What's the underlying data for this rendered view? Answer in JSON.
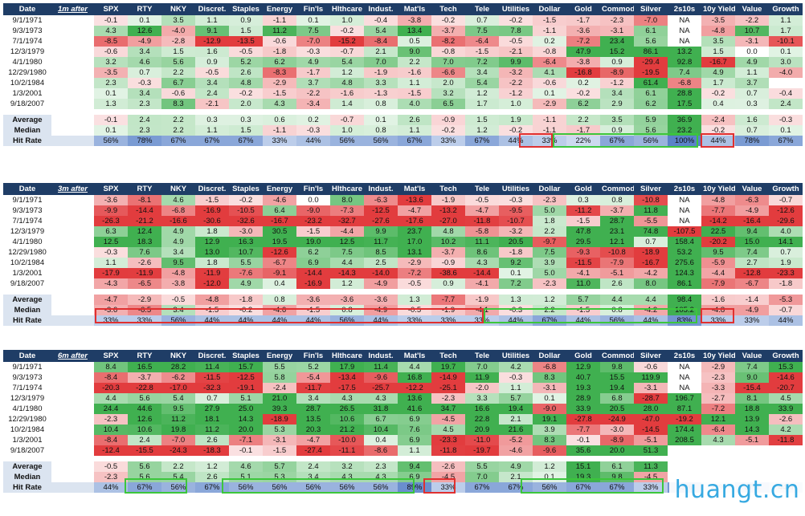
{
  "columns": [
    "SPX",
    "RTY",
    "NKY",
    "Discret.",
    "Staples",
    "Energy",
    "Fin'ls",
    "Hlthcare",
    "Indust.",
    "Mat'ls",
    "Tech",
    "Tele",
    "Utilities",
    "Dollar",
    "Gold",
    "Commod",
    "Silver",
    "2s10s",
    "10y Yield",
    "Value",
    "Growth"
  ],
  "labels": {
    "date": "Date",
    "average": "Average",
    "median": "Median",
    "hit_rate": "Hit Rate"
  },
  "dates": [
    "9/1/1971",
    "9/3/1973",
    "7/1/1974",
    "12/3/1979",
    "4/1/1980",
    "12/29/1980",
    "10/2/1984",
    "1/3/2001",
    "9/18/2007"
  ],
  "watermark": "huangt.cn",
  "sections": [
    {
      "period": "1m after",
      "rows": [
        [
          "-0.1",
          "0.1",
          "3.5",
          "1.1",
          "0.9",
          "-1.1",
          "0.1",
          "1.0",
          "-0.4",
          "-3.8",
          "-0.2",
          "0.7",
          "-0.2",
          "-1.5",
          "-1.7",
          "-2.3",
          "-7.0",
          "NA",
          "-3.5",
          "-2.2",
          "1.1"
        ],
        [
          "4.3",
          "12.6",
          "-4.0",
          "9.1",
          "1.5",
          "11.2",
          "7.5",
          "-0.2",
          "5.4",
          "13.4",
          "-3.7",
          "7.5",
          "7.8",
          "-1.1",
          "-3.6",
          "-3.1",
          "6.1",
          "NA",
          "-4.8",
          "10.7",
          "1.7"
        ],
        [
          "-8.5",
          "-4.9",
          "-2.8",
          "-12.9",
          "-13.5",
          "-0.6",
          "-7.0",
          "-15.2",
          "-8.4",
          "0.5",
          "-8.2",
          "-6.4",
          "-0.5",
          "0.2",
          "-7.2",
          "23.4",
          "5.6",
          "NA",
          "3.5",
          "-3.1",
          "-10.1"
        ],
        [
          "-0.6",
          "3.4",
          "1.5",
          "1.6",
          "-0.5",
          "-1.8",
          "-0.3",
          "-0.7",
          "2.1",
          "9.0",
          "-0.8",
          "-1.5",
          "-2.1",
          "-0.8",
          "47.9",
          "15.2",
          "86.1",
          "13.2",
          "1.5",
          "0.0",
          "0.1"
        ],
        [
          "3.2",
          "4.6",
          "5.6",
          "0.9",
          "5.2",
          "6.2",
          "4.9",
          "5.4",
          "7.0",
          "2.2",
          "7.0",
          "7.2",
          "9.9",
          "-6.4",
          "-3.8",
          "0.9",
          "-29.4",
          "92.8",
          "-16.7",
          "4.9",
          "3.0"
        ],
        [
          "-3.5",
          "0.7",
          "2.2",
          "-0.5",
          "2.6",
          "-8.3",
          "-1.7",
          "1.2",
          "-1.9",
          "-1.6",
          "-6.6",
          "3.4",
          "-3.2",
          "4.1",
          "-16.8",
          "-8.9",
          "-19.5",
          "7.4",
          "4.9",
          "1.1",
          "-4.0"
        ],
        [
          "2.3",
          "-0.3",
          "6.7",
          "3.4",
          "4.8",
          "-2.9",
          "3.7",
          "4.8",
          "3.3",
          "1.1",
          "2.0",
          "5.4",
          "-2.2",
          "-0.6",
          "0.2",
          "-1.2",
          "61.4",
          "-6.8",
          "1.7",
          "3.7",
          ""
        ],
        [
          "0.1",
          "3.4",
          "-0.6",
          "2.4",
          "-0.2",
          "-1.5",
          "-2.2",
          "-1.6",
          "-1.3",
          "-1.5",
          "3.2",
          "1.2",
          "-1.2",
          "0.1",
          "-0.2",
          "3.4",
          "6.1",
          "28.8",
          "-0.2",
          "0.7",
          "-0.4"
        ],
        [
          "1.3",
          "2.3",
          "8.3",
          "-2.1",
          "2.0",
          "4.3",
          "-3.4",
          "1.4",
          "0.8",
          "4.0",
          "6.5",
          "1.7",
          "1.0",
          "-2.9",
          "6.2",
          "2.9",
          "6.2",
          "17.5",
          "0.4",
          "0.3",
          "2.4"
        ]
      ],
      "average": [
        "-0.1",
        "2.4",
        "2.2",
        "0.3",
        "0.3",
        "0.6",
        "0.2",
        "-0.7",
        "0.1",
        "2.6",
        "-0.9",
        "1.5",
        "1.9",
        "-1.1",
        "2.2",
        "3.5",
        "5.9",
        "36.9",
        "-2.4",
        "1.6",
        "-0.3"
      ],
      "median": [
        "0.1",
        "2.3",
        "2.2",
        "1.1",
        "1.5",
        "-1.1",
        "-0.3",
        "1.0",
        "0.8",
        "1.1",
        "-0.2",
        "1.2",
        "-0.2",
        "-1.1",
        "-1.7",
        "0.9",
        "5.6",
        "23.2",
        "-0.2",
        "0.7",
        "0.1"
      ],
      "hit_rate": [
        "56%",
        "78%",
        "67%",
        "67%",
        "67%",
        "33%",
        "44%",
        "56%",
        "56%",
        "67%",
        "33%",
        "67%",
        "44%",
        "33%",
        "22%",
        "67%",
        "56%",
        "100%",
        "44%",
        "78%",
        "67%"
      ]
    },
    {
      "period": "3m after",
      "rows": [
        [
          "-3.6",
          "-8.1",
          "4.6",
          "-1.5",
          "-0.2",
          "-4.6",
          "0.0",
          "8.0",
          "-6.3",
          "-13.6",
          "-1.9",
          "-0.5",
          "-0.3",
          "-2.3",
          "0.3",
          "0.8",
          "-10.8",
          "NA",
          "-4.8",
          "-6.3",
          "-0.7"
        ],
        [
          "-9.9",
          "-14.4",
          "-6.8",
          "-16.9",
          "-10.5",
          "6.4",
          "-9.0",
          "-7.3",
          "-12.5",
          "-4.7",
          "-13.2",
          "-4.7",
          "-9.5",
          "5.0",
          "-11.2",
          "-3.7",
          "11.8",
          "NA",
          "-7.7",
          "-4.9",
          "-12.6"
        ],
        [
          "-26.3",
          "-21.2",
          "-16.6",
          "-30.6",
          "-32.6",
          "-16.7",
          "-23.2",
          "-32.7",
          "-27.6",
          "-17.6",
          "-27.0",
          "-11.8",
          "-10.7",
          "1.8",
          "-1.5",
          "28.7",
          "-5.5",
          "NA",
          "-14.2",
          "-16.4",
          "-29.6"
        ],
        [
          "6.3",
          "12.4",
          "4.9",
          "1.8",
          "-3.0",
          "30.5",
          "-1.5",
          "-4.4",
          "9.9",
          "23.7",
          "4.8",
          "-5.8",
          "-3.2",
          "2.2",
          "47.8",
          "23.1",
          "74.8",
          "-107.5",
          "22.5",
          "9.4",
          "4.0"
        ],
        [
          "12.5",
          "18.3",
          "4.9",
          "12.9",
          "16.3",
          "19.5",
          "19.0",
          "12.5",
          "11.7",
          "17.0",
          "10.2",
          "11.1",
          "20.5",
          "-9.7",
          "29.5",
          "12.1",
          "0.7",
          "158.4",
          "-20.2",
          "15.0",
          "14.1"
        ],
        [
          "-0.3",
          "7.6",
          "3.4",
          "13.0",
          "10.7",
          "-12.6",
          "6.2",
          "7.5",
          "8.5",
          "13.1",
          "-3.7",
          "8.6",
          "-1.8",
          "7.5",
          "-9.3",
          "-10.8",
          "-18.9",
          "53.2",
          "9.5",
          "7.4",
          "0.7"
        ],
        [
          "1.1",
          "-2.6",
          "9.5",
          "1.8",
          "5.5",
          "-6.7",
          "6.9",
          "4.4",
          "2.5",
          "-2.9",
          "-0.9",
          "4.3",
          "9.2",
          "3.9",
          "-11.5",
          "-7.9",
          "-16.7",
          "275.6",
          "-5.9",
          "2.7",
          "1.9"
        ],
        [
          "-17.9",
          "-11.9",
          "-4.8",
          "-11.9",
          "-7.6",
          "-9.1",
          "-14.4",
          "-14.3",
          "-14.0",
          "-7.2",
          "-38.6",
          "-14.4",
          "0.1",
          "5.0",
          "-4.1",
          "-5.1",
          "-4.2",
          "124.3",
          "-4.4",
          "-12.8",
          "-23.3"
        ],
        [
          "-4.3",
          "-6.5",
          "-3.8",
          "-12.0",
          "4.9",
          "0.4",
          "-16.9",
          "1.2",
          "-4.9",
          "-0.5",
          "0.9",
          "-4.1",
          "7.2",
          "-2.3",
          "11.0",
          "2.6",
          "8.0",
          "86.1",
          "-7.9",
          "-6.7",
          "-1.8"
        ]
      ],
      "average": [
        "-4.7",
        "-2.9",
        "-0.5",
        "-4.8",
        "-1.8",
        "0.8",
        "-3.6",
        "-3.6",
        "-3.6",
        "1.3",
        "-7.7",
        "-1.9",
        "1.3",
        "1.2",
        "5.7",
        "4.4",
        "4.4",
        "98.4",
        "-1.6",
        "-1.4",
        "-5.3"
      ],
      "median": [
        "-3.6",
        "-6.5",
        "3.4",
        "-1.5",
        "-0.2",
        "-4.6",
        "-1.5",
        "0.8",
        "-4.9",
        "-0.5",
        "-1.9",
        "-4.1",
        "-0.3",
        "2.2",
        "-1.5",
        "0.8",
        "-4.2",
        "105.2",
        "-4.8",
        "-4.9",
        "-0.7"
      ],
      "hit_rate": [
        "33%",
        "33%",
        "56%",
        "44%",
        "44%",
        "44%",
        "44%",
        "56%",
        "44%",
        "33%",
        "33%",
        "33%",
        "44%",
        "67%",
        "44%",
        "56%",
        "44%",
        "83%",
        "33%",
        "33%",
        "44%"
      ]
    },
    {
      "period": "6m after",
      "rows": [
        [
          "8.4",
          "16.5",
          "28.2",
          "11.4",
          "15.7",
          "5.5",
          "5.2",
          "17.9",
          "11.4",
          "4.4",
          "19.7",
          "7.0",
          "4.2",
          "-6.8",
          "12.9",
          "9.8",
          "-0.6",
          "NA",
          "-2.9",
          "7.4",
          "15.3"
        ],
        [
          "-8.4",
          "-3.7",
          "-6.2",
          "-11.5",
          "-12.5",
          "5.8",
          "-5.4",
          "-13.4",
          "-9.6",
          "16.8",
          "-14.9",
          "11.9",
          "-0.3",
          "8.3",
          "40.7",
          "15.5",
          "119.9",
          "NA",
          "-2.3",
          "9.0",
          "-14.6"
        ],
        [
          "-20.3",
          "-22.8",
          "-17.0",
          "-32.3",
          "-19.1",
          "-2.4",
          "-11.7",
          "-17.5",
          "-25.7",
          "-12.2",
          "-25.1",
          "-2.0",
          "1.1",
          "-3.1",
          "19.3",
          "19.4",
          "-3.1",
          "NA",
          "-3.3",
          "-15.4",
          "-20.7"
        ],
        [
          "4.4",
          "5.6",
          "5.4",
          "0.7",
          "5.1",
          "21.0",
          "3.4",
          "4.3",
          "4.3",
          "13.6",
          "-2.3",
          "3.3",
          "5.7",
          "0.1",
          "28.9",
          "6.8",
          "-28.7",
          "196.7",
          "-2.7",
          "8.1",
          "4.5"
        ],
        [
          "24.4",
          "44.6",
          "9.5",
          "27.9",
          "25.0",
          "39.3",
          "28.7",
          "26.5",
          "31.8",
          "41.6",
          "34.7",
          "16.6",
          "19.4",
          "-9.0",
          "33.9",
          "20.5",
          "28.0",
          "87.1",
          "-7.2",
          "18.8",
          "33.9"
        ],
        [
          "-2.3",
          "12.6",
          "11.2",
          "18.1",
          "14.3",
          "-18.9",
          "13.5",
          "10.6",
          "6.7",
          "6.9",
          "-4.5",
          "22.8",
          "2.1",
          "19.1",
          "-27.8",
          "-24.9",
          "-47.0",
          "-19.2",
          "12.1",
          "13.9",
          "-2.6"
        ],
        [
          "10.4",
          "10.6",
          "19.8",
          "11.2",
          "20.0",
          "5.3",
          "20.3",
          "21.2",
          "10.4",
          "7.6",
          "4.5",
          "20.9",
          "21.6",
          "3.9",
          "-7.7",
          "-3.0",
          "-14.5",
          "174.4",
          "-6.4",
          "14.3",
          "4.2"
        ],
        [
          "-8.4",
          "2.4",
          "-7.0",
          "2.6",
          "-7.1",
          "-3.1",
          "-4.7",
          "-10.0",
          "0.4",
          "6.9",
          "-23.3",
          "-11.0",
          "-5.2",
          "8.3",
          "-0.1",
          "-8.9",
          "-5.1",
          "208.5",
          "4.3",
          "-5.1",
          "-11.8"
        ],
        [
          "-12.4",
          "-15.5",
          "-24.3",
          "-18.3",
          "-0.1",
          "-1.5",
          "-27.4",
          "-11.1",
          "-8.6",
          "1.1",
          "-11.8",
          "-19.7",
          "-4.6",
          "-9.6",
          "35.6",
          "20.0",
          "51.3",
          "",
          "",
          "",
          ""
        ]
      ],
      "average": [
        "-0.5",
        "5.6",
        "2.2",
        "1.2",
        "4.6",
        "5.7",
        "2.4",
        "3.2",
        "2.3",
        "9.4",
        "-2.6",
        "5.5",
        "4.9",
        "1.2",
        "15.1",
        "6.1",
        "11.3",
        "",
        "",
        "",
        ""
      ],
      "median": [
        "-2.3",
        "5.6",
        "5.4",
        "2.6",
        "5.1",
        "5.3",
        "3.4",
        "4.3",
        "4.3",
        "6.9",
        "-4.5",
        "7.0",
        "2.1",
        "0.1",
        "19.3",
        "9.8",
        "-4.5",
        "",
        "",
        "",
        ""
      ],
      "hit_rate": [
        "44%",
        "67%",
        "56%",
        "67%",
        "56%",
        "56%",
        "56%",
        "56%",
        "56%",
        "89%",
        "33%",
        "67%",
        "67%",
        "56%",
        "67%",
        "67%",
        "33%",
        "83%",
        "22%",
        "67%",
        "44%"
      ]
    }
  ],
  "colors": {
    "header_bg": "#1f3d66",
    "positive_green": "#3fae4f",
    "negative_red": "#e0393b",
    "hit_rate_bg": "#c9d7ea",
    "highlight_red": "#e03030",
    "highlight_green": "#3cc63c",
    "watermark": "#36a9e1"
  }
}
